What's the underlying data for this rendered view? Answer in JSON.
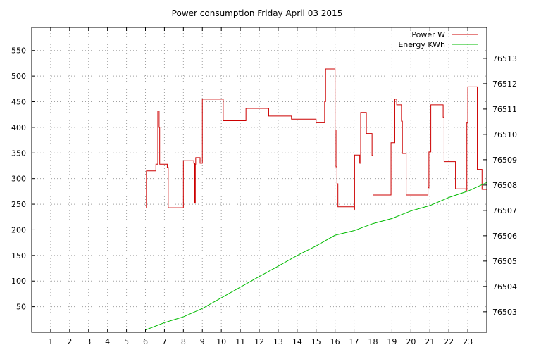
{
  "chart_data": {
    "type": "line",
    "title": "Power consumption Friday April 03 2015",
    "xlabel": "",
    "ylabel": "",
    "xlim": [
      0,
      24
    ],
    "ylim": [
      0,
      595
    ],
    "y2lim": [
      76502.19,
      76514.22
    ],
    "x_ticks": [
      1,
      2,
      3,
      4,
      5,
      6,
      7,
      8,
      9,
      10,
      11,
      12,
      13,
      14,
      15,
      16,
      17,
      18,
      19,
      20,
      21,
      22,
      23
    ],
    "y_ticks": [
      50,
      100,
      150,
      200,
      250,
      300,
      350,
      400,
      450,
      500,
      550
    ],
    "y2_ticks": [
      76503,
      76504,
      76505,
      76506,
      76507,
      76508,
      76509,
      76510,
      76511,
      76512,
      76513
    ],
    "grid": true,
    "legend_position": "top-right",
    "series": [
      {
        "name": "Power W",
        "axis": "left",
        "color": "#cc0000",
        "step": true,
        "points": [
          [
            6.05,
            242
          ],
          [
            6.05,
            315
          ],
          [
            6.55,
            315
          ],
          [
            6.55,
            328
          ],
          [
            6.65,
            328
          ],
          [
            6.65,
            432
          ],
          [
            6.72,
            432
          ],
          [
            6.72,
            400
          ],
          [
            6.75,
            400
          ],
          [
            6.75,
            328
          ],
          [
            7.15,
            328
          ],
          [
            7.15,
            322
          ],
          [
            7.2,
            322
          ],
          [
            7.2,
            243
          ],
          [
            8.0,
            243
          ],
          [
            8.0,
            335
          ],
          [
            8.55,
            335
          ],
          [
            8.55,
            330
          ],
          [
            8.6,
            330
          ],
          [
            8.6,
            252
          ],
          [
            8.63,
            252
          ],
          [
            8.63,
            328
          ],
          [
            8.65,
            328
          ],
          [
            8.65,
            341
          ],
          [
            8.88,
            341
          ],
          [
            8.88,
            330
          ],
          [
            9.0,
            330
          ],
          [
            9.0,
            455
          ],
          [
            10.1,
            455
          ],
          [
            10.1,
            413
          ],
          [
            11.3,
            413
          ],
          [
            11.3,
            437
          ],
          [
            12.5,
            437
          ],
          [
            12.5,
            422
          ],
          [
            13.7,
            422
          ],
          [
            13.7,
            416
          ],
          [
            15.0,
            416
          ],
          [
            15.0,
            409
          ],
          [
            15.45,
            409
          ],
          [
            15.45,
            450
          ],
          [
            15.5,
            450
          ],
          [
            15.5,
            514
          ],
          [
            16.0,
            514
          ],
          [
            16.0,
            395
          ],
          [
            16.05,
            395
          ],
          [
            16.05,
            323
          ],
          [
            16.1,
            323
          ],
          [
            16.1,
            290
          ],
          [
            16.15,
            290
          ],
          [
            16.15,
            245
          ],
          [
            17.0,
            245
          ],
          [
            17.0,
            240
          ],
          [
            17.03,
            240
          ],
          [
            17.03,
            346
          ],
          [
            17.3,
            346
          ],
          [
            17.3,
            330
          ],
          [
            17.35,
            330
          ],
          [
            17.35,
            429
          ],
          [
            17.65,
            429
          ],
          [
            17.65,
            388
          ],
          [
            17.95,
            388
          ],
          [
            17.95,
            345
          ],
          [
            18.0,
            345
          ],
          [
            18.0,
            268
          ],
          [
            18.95,
            268
          ],
          [
            18.95,
            370
          ],
          [
            19.15,
            370
          ],
          [
            19.15,
            455
          ],
          [
            19.25,
            455
          ],
          [
            19.25,
            444
          ],
          [
            19.5,
            444
          ],
          [
            19.5,
            412
          ],
          [
            19.55,
            412
          ],
          [
            19.55,
            349
          ],
          [
            19.75,
            349
          ],
          [
            19.75,
            268
          ],
          [
            20.9,
            268
          ],
          [
            20.9,
            282
          ],
          [
            20.95,
            282
          ],
          [
            20.95,
            352
          ],
          [
            21.05,
            352
          ],
          [
            21.05,
            444
          ],
          [
            21.7,
            444
          ],
          [
            21.7,
            420
          ],
          [
            21.75,
            420
          ],
          [
            21.75,
            333
          ],
          [
            22.35,
            333
          ],
          [
            22.35,
            280
          ],
          [
            22.9,
            280
          ],
          [
            22.9,
            275
          ],
          [
            22.95,
            275
          ],
          [
            22.95,
            409
          ],
          [
            23.0,
            409
          ],
          [
            23.0,
            479
          ],
          [
            23.5,
            479
          ],
          [
            23.5,
            318
          ],
          [
            23.75,
            318
          ],
          [
            23.75,
            279
          ],
          [
            24.0,
            279
          ]
        ]
      },
      {
        "name": "Energy KWh",
        "axis": "right",
        "color": "#00bb00",
        "step": false,
        "points": [
          [
            6.0,
            76502.28
          ],
          [
            7.0,
            76502.57
          ],
          [
            8.0,
            76502.8
          ],
          [
            9.0,
            76503.13
          ],
          [
            10.0,
            76503.55
          ],
          [
            11.0,
            76503.97
          ],
          [
            12.0,
            76504.39
          ],
          [
            13.0,
            76504.8
          ],
          [
            14.0,
            76505.22
          ],
          [
            15.0,
            76505.6
          ],
          [
            16.0,
            76506.02
          ],
          [
            17.0,
            76506.2
          ],
          [
            18.0,
            76506.48
          ],
          [
            19.0,
            76506.68
          ],
          [
            20.0,
            76506.98
          ],
          [
            21.0,
            76507.19
          ],
          [
            22.0,
            76507.51
          ],
          [
            23.0,
            76507.76
          ],
          [
            24.0,
            76508.1
          ]
        ]
      }
    ]
  }
}
